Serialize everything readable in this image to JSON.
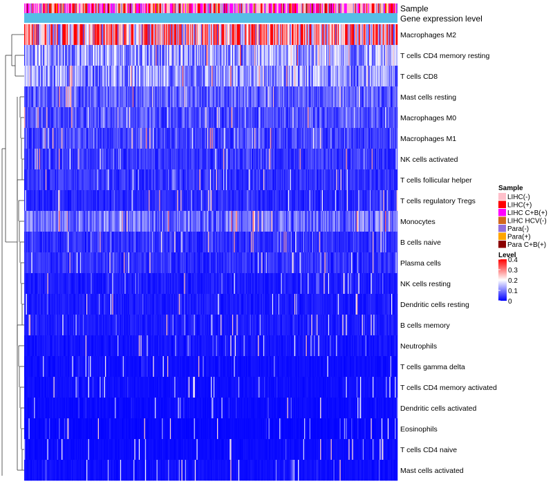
{
  "chart_data": {
    "type": "heatmap",
    "annotation_tracks": [
      {
        "name": "Sample"
      },
      {
        "name": "Gene expression level"
      }
    ],
    "rows": [
      {
        "label": "Macrophages M2",
        "mean": 0.27
      },
      {
        "label": "T cells CD4 memory resting",
        "mean": 0.12
      },
      {
        "label": "T cells CD8",
        "mean": 0.11
      },
      {
        "label": "Mast cells resting",
        "mean": 0.07
      },
      {
        "label": "Macrophages M0",
        "mean": 0.06
      },
      {
        "label": "Macrophages M1",
        "mean": 0.05
      },
      {
        "label": "NK cells activated",
        "mean": 0.04
      },
      {
        "label": "T cells follicular helper",
        "mean": 0.04
      },
      {
        "label": "T cells regulatory  Tregs",
        "mean": 0.03
      },
      {
        "label": "Monocytes",
        "mean": 0.08
      },
      {
        "label": "B cells naive",
        "mean": 0.035
      },
      {
        "label": "Plasma cells",
        "mean": 0.035
      },
      {
        "label": "NK cells resting",
        "mean": 0.02
      },
      {
        "label": "Dendritic cells resting",
        "mean": 0.02
      },
      {
        "label": "B cells memory",
        "mean": 0.02
      },
      {
        "label": "Neutrophils",
        "mean": 0.015
      },
      {
        "label": "T cells gamma delta",
        "mean": 0.01
      },
      {
        "label": "T cells CD4 memory activated",
        "mean": 0.01
      },
      {
        "label": "Dendritic cells activated",
        "mean": 0.008
      },
      {
        "label": "Eosinophils",
        "mean": 0.005
      },
      {
        "label": "T cells CD4 naive",
        "mean": 0.008
      },
      {
        "label": "Mast cells activated",
        "mean": 0.01
      }
    ],
    "n_samples": 420,
    "sample_legend": {
      "title": "Sample",
      "items": [
        {
          "label": "LIHC(-)",
          "color": "#ffc0cb"
        },
        {
          "label": "LIHC(+)",
          "color": "#ff0000"
        },
        {
          "label": "LIHC C+B(+)",
          "color": "#ff00ff"
        },
        {
          "label": "LIHC HCV(-)",
          "color": "#d2691e"
        },
        {
          "label": "Para(-)",
          "color": "#9370db"
        },
        {
          "label": "Para(+)",
          "color": "#ffa500"
        },
        {
          "label": "Para C+B(+)",
          "color": "#8b0000"
        }
      ]
    },
    "level_legend": {
      "title": "Level",
      "ticks": [
        "0.4",
        "0.3",
        "0.2",
        "0.1",
        "0"
      ],
      "range": [
        0,
        0.4
      ],
      "colors": [
        "#0000ff",
        "#ffffff",
        "#ff0000"
      ]
    },
    "expression_track_color": "#56bde6"
  }
}
